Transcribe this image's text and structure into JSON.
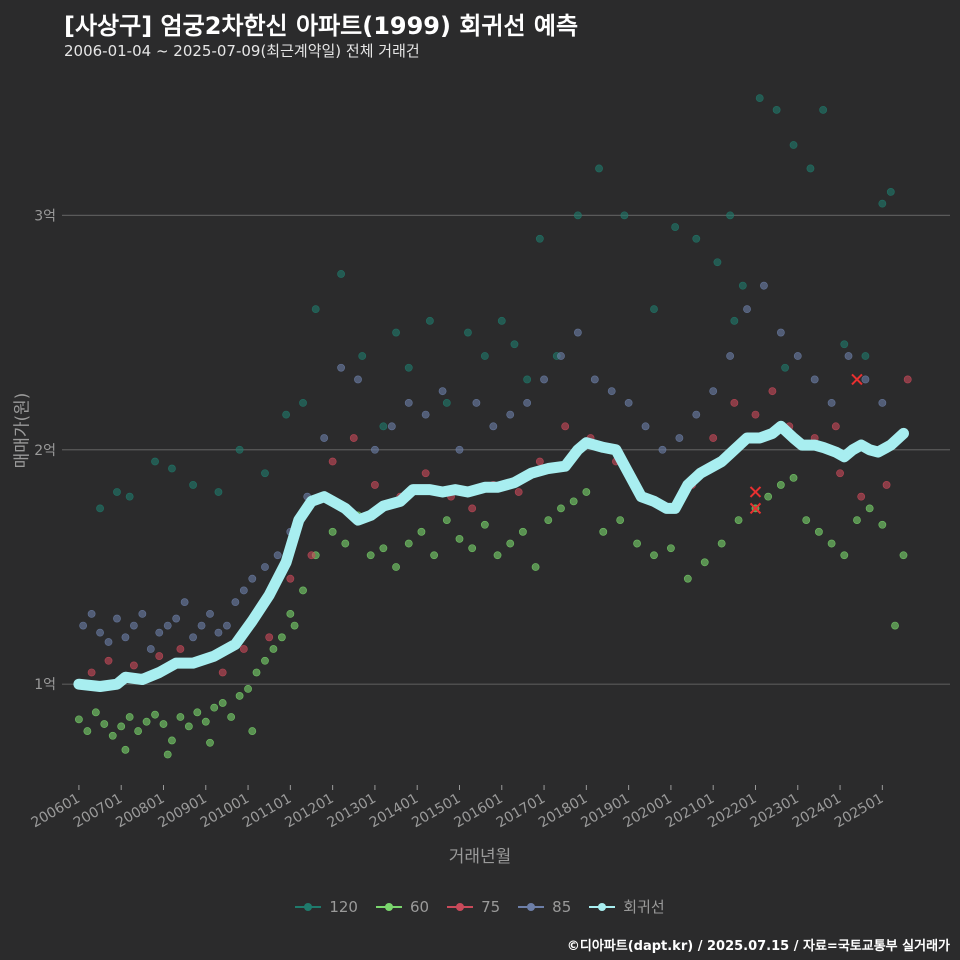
{
  "header": {
    "title": "[사상구] 엄궁2차한신 아파트(1999) 회귀선 예측",
    "subtitle": "2006-01-04 ~ 2025-07-09(최근계약일) 전체 거래건"
  },
  "footer": {
    "credit": "©디아파트(dapt.kr) / 2025.07.15 / 자료=국토교통부 실거래가"
  },
  "colors": {
    "background": "#2b2b2c",
    "grid": "#5a5a5a",
    "s120": "#1f7a6c",
    "s60": "#7ad66d",
    "s75": "#c94a5a",
    "s85": "#6d7fa8",
    "trend": "#a8eef0",
    "marker": "#e83030"
  },
  "chart_data": {
    "type": "scatter",
    "title": "[사상구] 엄궁2차한신 아파트(1999) 회귀선 예측",
    "xlabel": "거래년월",
    "ylabel": "매매가(원)",
    "x_unit": "years (decimal)",
    "y_unit": "억원",
    "xlim": [
      2005.6,
      2026.6
    ],
    "ylim": [
      0.57,
      3.62
    ],
    "x_ticks": [
      {
        "value": 2006.0,
        "label": "200601"
      },
      {
        "value": 2007.0,
        "label": "200701"
      },
      {
        "value": 2008.0,
        "label": "200801"
      },
      {
        "value": 2009.0,
        "label": "200901"
      },
      {
        "value": 2010.0,
        "label": "201001"
      },
      {
        "value": 2011.0,
        "label": "201101"
      },
      {
        "value": 2012.0,
        "label": "201201"
      },
      {
        "value": 2013.0,
        "label": "201301"
      },
      {
        "value": 2014.0,
        "label": "201401"
      },
      {
        "value": 2015.0,
        "label": "201501"
      },
      {
        "value": 2016.0,
        "label": "201601"
      },
      {
        "value": 2017.0,
        "label": "201701"
      },
      {
        "value": 2018.0,
        "label": "201801"
      },
      {
        "value": 2019.0,
        "label": "201901"
      },
      {
        "value": 2020.0,
        "label": "202001"
      },
      {
        "value": 2021.0,
        "label": "202101"
      },
      {
        "value": 2022.0,
        "label": "202201"
      },
      {
        "value": 2023.0,
        "label": "202301"
      },
      {
        "value": 2024.0,
        "label": "202401"
      },
      {
        "value": 2025.0,
        "label": "202501"
      }
    ],
    "y_ticks": [
      {
        "value": 1,
        "label": "1억"
      },
      {
        "value": 2,
        "label": "2억"
      },
      {
        "value": 3,
        "label": "3억"
      }
    ],
    "grid": true,
    "legend_position": "bottom",
    "legend": [
      "120",
      "60",
      "75",
      "85",
      "회귀선"
    ],
    "series": [
      {
        "name": "120",
        "kind": "points",
        "x": [
          2006.5,
          2006.9,
          2007.2,
          2007.8,
          2008.2,
          2008.7,
          2009.3,
          2009.8,
          2010.4,
          2010.9,
          2011.3,
          2011.6,
          2012.2,
          2012.7,
          2013.2,
          2013.8,
          2014.3,
          2014.7,
          2015.2,
          2015.6,
          2016.0,
          2016.3,
          2016.6,
          2017.3,
          2017.8,
          2018.3,
          2018.9,
          2019.6,
          2020.1,
          2020.6,
          2021.1,
          2021.4,
          2021.7,
          2022.1,
          2022.5,
          2022.9,
          2023.3,
          2023.6,
          2024.1,
          2024.6,
          2025.0,
          2025.2,
          2013.5,
          2016.9,
          2021.5,
          2022.7
        ],
        "y": [
          1.75,
          1.82,
          1.8,
          1.95,
          1.92,
          1.85,
          1.82,
          2.0,
          1.9,
          2.15,
          2.2,
          2.6,
          2.75,
          2.4,
          2.1,
          2.35,
          2.55,
          2.2,
          2.5,
          2.4,
          2.55,
          2.45,
          2.3,
          2.4,
          3.0,
          3.2,
          3.0,
          2.6,
          2.95,
          2.9,
          2.8,
          3.0,
          2.7,
          3.5,
          3.45,
          3.3,
          3.2,
          3.45,
          2.45,
          2.4,
          3.05,
          3.1,
          2.5,
          2.9,
          2.55,
          2.35
        ]
      },
      {
        "name": "60",
        "kind": "points",
        "x": [
          2006.0,
          2006.2,
          2006.4,
          2006.6,
          2006.8,
          2007.0,
          2007.2,
          2007.4,
          2007.6,
          2007.8,
          2008.0,
          2008.2,
          2008.4,
          2008.6,
          2008.8,
          2009.0,
          2009.2,
          2009.4,
          2009.6,
          2009.8,
          2010.0,
          2010.2,
          2010.4,
          2010.6,
          2010.8,
          2011.0,
          2011.3,
          2011.6,
          2012.0,
          2012.3,
          2012.6,
          2012.9,
          2013.2,
          2013.5,
          2013.8,
          2014.1,
          2014.4,
          2014.7,
          2015.0,
          2015.3,
          2015.6,
          2015.9,
          2016.2,
          2016.5,
          2016.8,
          2017.1,
          2017.4,
          2017.7,
          2018.0,
          2018.4,
          2018.8,
          2019.2,
          2019.6,
          2020.0,
          2020.4,
          2020.8,
          2021.2,
          2021.6,
          2022.0,
          2022.3,
          2022.6,
          2022.9,
          2023.2,
          2023.5,
          2023.8,
          2024.1,
          2024.4,
          2024.7,
          2025.0,
          2025.3,
          2025.5,
          2007.1,
          2008.1,
          2009.1,
          2010.1,
          2011.1
        ],
        "y": [
          0.85,
          0.8,
          0.88,
          0.83,
          0.78,
          0.82,
          0.86,
          0.8,
          0.84,
          0.87,
          0.83,
          0.76,
          0.86,
          0.82,
          0.88,
          0.84,
          0.9,
          0.92,
          0.86,
          0.95,
          0.98,
          1.05,
          1.1,
          1.15,
          1.2,
          1.3,
          1.4,
          1.55,
          1.65,
          1.6,
          1.72,
          1.55,
          1.58,
          1.5,
          1.6,
          1.65,
          1.55,
          1.7,
          1.62,
          1.58,
          1.68,
          1.55,
          1.6,
          1.65,
          1.5,
          1.7,
          1.75,
          1.78,
          1.82,
          1.65,
          1.7,
          1.6,
          1.55,
          1.58,
          1.45,
          1.52,
          1.6,
          1.7,
          1.75,
          1.8,
          1.85,
          1.88,
          1.7,
          1.65,
          1.6,
          1.55,
          1.7,
          1.75,
          1.68,
          1.25,
          1.55,
          0.72,
          0.7,
          0.75,
          0.8,
          1.25
        ]
      },
      {
        "name": "75",
        "kind": "points",
        "x": [
          2006.3,
          2006.7,
          2007.3,
          2007.9,
          2008.4,
          2008.8,
          2009.4,
          2009.9,
          2010.5,
          2011.0,
          2011.5,
          2012.0,
          2012.5,
          2013.0,
          2013.6,
          2014.2,
          2014.8,
          2015.3,
          2015.8,
          2016.4,
          2016.9,
          2017.5,
          2018.1,
          2018.7,
          2019.3,
          2019.9,
          2020.5,
          2021.0,
          2021.5,
          2022.0,
          2022.4,
          2022.8,
          2023.4,
          2024.0,
          2024.5,
          2025.1,
          2025.6,
          2023.9
        ],
        "y": [
          1.05,
          1.1,
          1.08,
          1.12,
          1.15,
          1.1,
          1.05,
          1.15,
          1.2,
          1.45,
          1.55,
          1.95,
          2.05,
          1.85,
          1.8,
          1.9,
          1.8,
          1.75,
          1.85,
          1.82,
          1.95,
          2.1,
          2.05,
          1.95,
          1.8,
          1.75,
          1.85,
          2.05,
          2.2,
          2.15,
          2.25,
          2.1,
          2.05,
          1.9,
          1.8,
          1.85,
          2.3,
          2.1
        ]
      },
      {
        "name": "85",
        "kind": "points",
        "x": [
          2006.1,
          2006.3,
          2006.5,
          2006.7,
          2006.9,
          2007.1,
          2007.3,
          2007.5,
          2007.7,
          2007.9,
          2008.1,
          2008.3,
          2008.5,
          2008.7,
          2008.9,
          2009.1,
          2009.3,
          2009.5,
          2009.7,
          2009.9,
          2010.1,
          2010.4,
          2010.7,
          2011.0,
          2011.4,
          2011.8,
          2012.2,
          2012.6,
          2013.0,
          2013.4,
          2013.8,
          2014.2,
          2014.6,
          2015.0,
          2015.4,
          2015.8,
          2016.2,
          2016.6,
          2017.0,
          2017.4,
          2017.8,
          2018.2,
          2018.6,
          2019.0,
          2019.4,
          2019.8,
          2020.2,
          2020.6,
          2021.0,
          2021.4,
          2021.8,
          2022.2,
          2022.6,
          2023.0,
          2023.4,
          2023.8,
          2024.2,
          2024.6,
          2025.0
        ],
        "y": [
          1.25,
          1.3,
          1.22,
          1.18,
          1.28,
          1.2,
          1.25,
          1.3,
          1.15,
          1.22,
          1.25,
          1.28,
          1.35,
          1.2,
          1.25,
          1.3,
          1.22,
          1.25,
          1.35,
          1.4,
          1.45,
          1.5,
          1.55,
          1.65,
          1.8,
          2.05,
          2.35,
          2.3,
          2.0,
          2.1,
          2.2,
          2.15,
          2.25,
          2.0,
          2.2,
          2.1,
          2.15,
          2.2,
          2.3,
          2.4,
          2.5,
          2.3,
          2.25,
          2.2,
          2.1,
          2.0,
          2.05,
          2.15,
          2.25,
          2.4,
          2.6,
          2.7,
          2.5,
          2.4,
          2.3,
          2.2,
          2.4,
          2.3,
          2.2
        ]
      },
      {
        "name": "회귀선",
        "kind": "line",
        "x": [
          2006.0,
          2006.5,
          2006.9,
          2007.1,
          2007.5,
          2007.9,
          2008.3,
          2008.7,
          2009.2,
          2009.7,
          2010.1,
          2010.5,
          2010.9,
          2011.2,
          2011.5,
          2011.8,
          2012.0,
          2012.3,
          2012.6,
          2012.9,
          2013.2,
          2013.6,
          2013.9,
          2014.3,
          2014.6,
          2014.9,
          2015.2,
          2015.6,
          2015.9,
          2016.3,
          2016.7,
          2017.1,
          2017.5,
          2017.8,
          2018.0,
          2018.4,
          2018.7,
          2019.0,
          2019.3,
          2019.6,
          2019.9,
          2020.1,
          2020.4,
          2020.7,
          2020.9,
          2021.2,
          2021.5,
          2021.8,
          2022.1,
          2022.4,
          2022.6,
          2022.9,
          2023.1,
          2023.4,
          2023.6,
          2023.9,
          2024.1,
          2024.3,
          2024.5,
          2024.7,
          2024.9,
          2025.2,
          2025.5
        ],
        "y": [
          1.0,
          0.99,
          1.0,
          1.03,
          1.02,
          1.05,
          1.09,
          1.09,
          1.12,
          1.17,
          1.27,
          1.38,
          1.52,
          1.7,
          1.78,
          1.8,
          1.78,
          1.75,
          1.7,
          1.72,
          1.76,
          1.78,
          1.83,
          1.83,
          1.82,
          1.83,
          1.82,
          1.84,
          1.84,
          1.86,
          1.9,
          1.92,
          1.93,
          2.0,
          2.03,
          2.01,
          2.0,
          1.9,
          1.8,
          1.78,
          1.75,
          1.75,
          1.85,
          1.9,
          1.92,
          1.95,
          2.0,
          2.05,
          2.05,
          2.07,
          2.1,
          2.05,
          2.02,
          2.02,
          2.01,
          1.99,
          1.97,
          2.0,
          2.02,
          2.0,
          1.99,
          2.02,
          2.07
        ]
      },
      {
        "name": "recent-trade-marker",
        "kind": "x-marker",
        "x": [
          2022.0,
          2022.0,
          2024.4
        ],
        "y": [
          1.82,
          1.75,
          2.3
        ]
      }
    ]
  }
}
